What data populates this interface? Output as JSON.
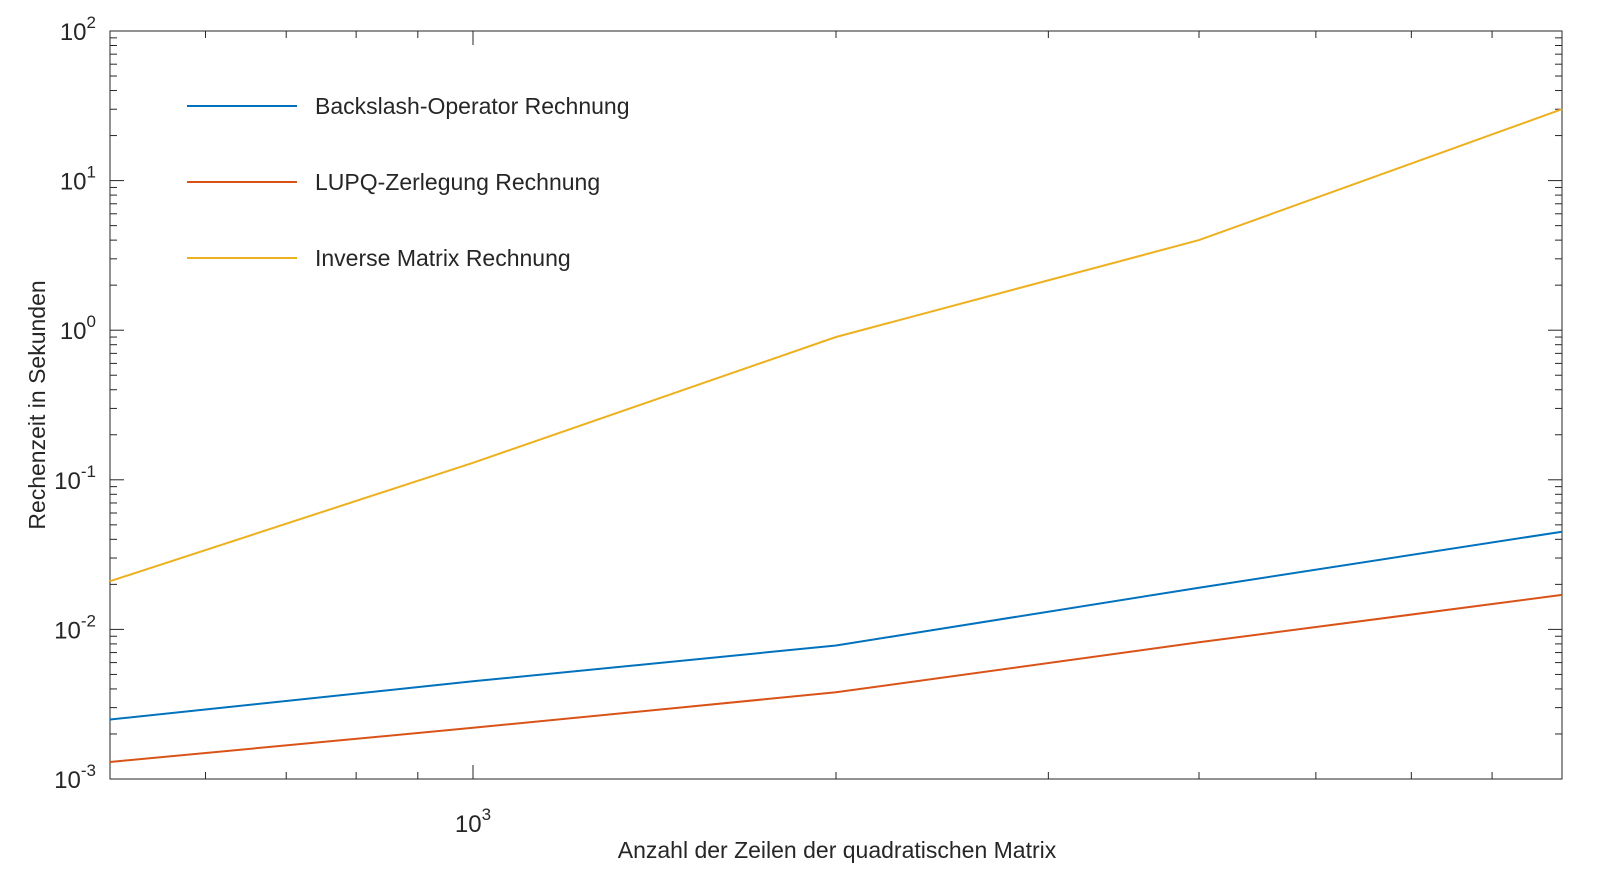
{
  "chart_data": {
    "type": "line",
    "title": "",
    "xlabel": "Anzahl der Zeilen der quadratischen Matrix",
    "ylabel": "Rechenzeit in Sekunden",
    "x_scale": "log",
    "y_scale": "log",
    "xlim": [
      500,
      8000
    ],
    "ylim": [
      0.001,
      100
    ],
    "x_ticks": [
      {
        "base": "10",
        "exp": "3",
        "value": 1000
      }
    ],
    "y_ticks": [
      {
        "base": "10",
        "exp": "-3",
        "value": 0.001
      },
      {
        "base": "10",
        "exp": "-2",
        "value": 0.01
      },
      {
        "base": "10",
        "exp": "-1",
        "value": 0.1
      },
      {
        "base": "10",
        "exp": "0",
        "value": 1
      },
      {
        "base": "10",
        "exp": "1",
        "value": 10
      },
      {
        "base": "10",
        "exp": "2",
        "value": 100
      }
    ],
    "grid": false,
    "legend_position": "top-left",
    "x": [
      500,
      1000,
      2000,
      4000,
      8000
    ],
    "series": [
      {
        "name": "Backslash-Operator Rechnung",
        "color": "#0072BD",
        "values": [
          0.0025,
          0.0045,
          0.0078,
          0.019,
          0.045
        ]
      },
      {
        "name": "LUPQ-Zerlegung Rechnung",
        "color": "#D95319",
        "values": [
          0.0013,
          0.0022,
          0.0038,
          0.0082,
          0.017
        ]
      },
      {
        "name": "Inverse Matrix Rechnung",
        "color": "#EDB120",
        "values": [
          0.021,
          0.13,
          0.9,
          4.0,
          30.0
        ]
      }
    ]
  }
}
